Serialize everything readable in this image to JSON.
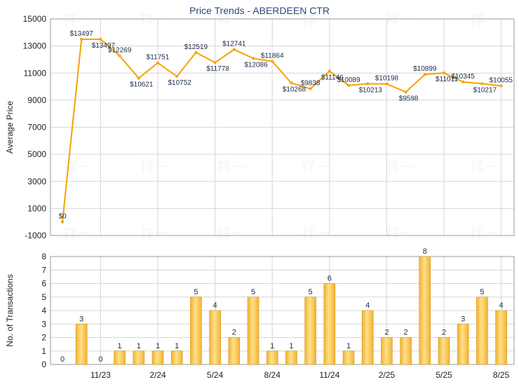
{
  "title": "Price Trends - ABERDEEN CTR",
  "watermark_text": "祥一",
  "colors": {
    "line": "#F5A300",
    "bar": "#F2B230",
    "bar_highlight": "#FFE08A",
    "grid": "#d6d6d6",
    "axis_text": "#222222",
    "label_text": "#1a2a4a",
    "title_text": "#2a4a7a"
  },
  "chart_data": [
    {
      "type": "line",
      "ylabel": "Average Price",
      "ylim": [
        -1000,
        15000
      ],
      "yticks": [
        -1000,
        1000,
        3000,
        5000,
        7000,
        9000,
        11000,
        13000,
        15000
      ],
      "grid": true,
      "series": [
        {
          "values": [
            0,
            13497,
            13497,
            12269,
            10621,
            11751,
            10752,
            12519,
            11778,
            12741,
            12086,
            11864,
            10268,
            9838,
            11146,
            10089,
            10213,
            10198,
            9598,
            10899,
            11011,
            10345,
            10217,
            10055
          ],
          "labels": [
            "$0",
            "$13497",
            "$13497",
            "$12269",
            "$10621",
            "$11751",
            "$10752",
            "$12519",
            "$11778",
            "$12741",
            "$12086",
            "$11864",
            "$10268",
            "$9838",
            "$11146",
            "$10089",
            "$10213",
            "$10198",
            "$9598",
            "$10899",
            "$11011",
            "$10345",
            "$10217",
            "$10055"
          ]
        }
      ]
    },
    {
      "type": "bar",
      "ylabel": "No. of Transactions",
      "ylim": [
        0,
        8
      ],
      "yticks": [
        0,
        1,
        2,
        3,
        4,
        5,
        6,
        7,
        8
      ],
      "grid": true,
      "x_tick_labels": [
        "11/23",
        "2/24",
        "5/24",
        "8/24",
        "11/24",
        "2/25",
        "5/25",
        "8/25"
      ],
      "values": [
        0,
        3,
        0,
        1,
        1,
        1,
        1,
        5,
        4,
        2,
        5,
        1,
        1,
        5,
        6,
        1,
        4,
        2,
        2,
        8,
        2,
        3,
        5,
        4
      ]
    }
  ]
}
